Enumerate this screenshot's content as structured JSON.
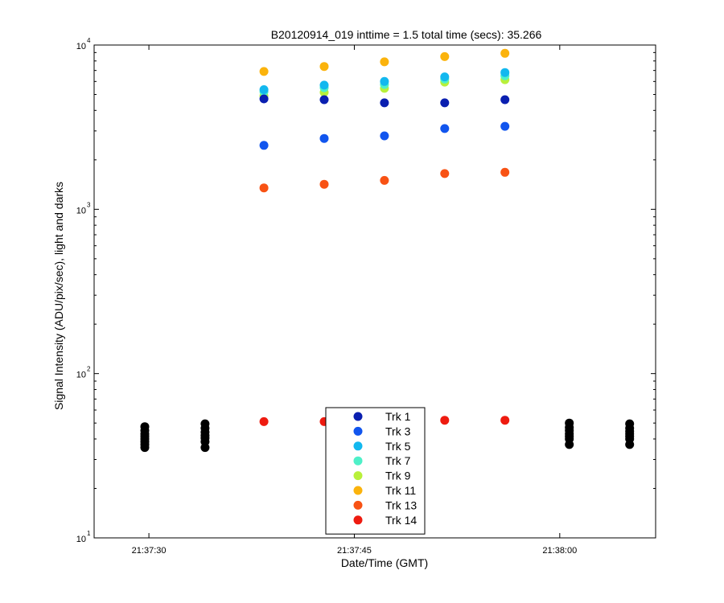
{
  "chart_data": {
    "type": "scatter",
    "title": "B20120914_019 inttime = 1.5 total time (secs): 35.266",
    "xlabel": "Date/Time (GMT)",
    "ylabel": "Signal Intensity (ADU/pix/sec), light and darks",
    "xscale": "time",
    "yscale": "log",
    "grid": false,
    "legend_position": "bottom-center",
    "xlim": [
      "21:37:26",
      "21:38:07"
    ],
    "ylim": [
      10,
      10000
    ],
    "xticks": [
      "21:37:30",
      "21:37:45",
      "21:38:00"
    ],
    "yticks": [
      {
        "base": "10",
        "exp": "1"
      },
      {
        "base": "10",
        "exp": "2"
      },
      {
        "base": "10",
        "exp": "3"
      },
      {
        "base": "10",
        "exp": "4"
      }
    ],
    "series": [
      {
        "name": "Trk 1",
        "color": "#0a1fb0",
        "points": [
          [
            "21:37:38.4",
            4700
          ],
          [
            "21:37:42.8",
            4650
          ],
          [
            "21:37:47.2",
            4450
          ],
          [
            "21:37:51.6",
            4450
          ],
          [
            "21:37:56.0",
            4650
          ]
        ]
      },
      {
        "name": "Trk 3",
        "color": "#1155ee",
        "points": [
          [
            "21:37:38.4",
            2450
          ],
          [
            "21:37:42.8",
            2700
          ],
          [
            "21:37:47.2",
            2800
          ],
          [
            "21:37:51.6",
            3100
          ],
          [
            "21:37:56.0",
            3200
          ]
        ]
      },
      {
        "name": "Trk 5",
        "color": "#12b8ef",
        "points": [
          [
            "21:37:38.4",
            5350
          ],
          [
            "21:37:42.8",
            5700
          ],
          [
            "21:37:47.2",
            6000
          ],
          [
            "21:37:51.6",
            6400
          ],
          [
            "21:37:56.0",
            6800
          ]
        ]
      },
      {
        "name": "Trk 7",
        "color": "#4ef0c8",
        "points": [
          [
            "21:37:38.4",
            5200
          ],
          [
            "21:37:42.8",
            5500
          ],
          [
            "21:37:47.2",
            5750
          ],
          [
            "21:37:51.6",
            6200
          ],
          [
            "21:37:56.0",
            6500
          ]
        ]
      },
      {
        "name": "Trk 9",
        "color": "#b8f03a",
        "points": [
          [
            "21:37:38.4",
            4900
          ],
          [
            "21:37:42.8",
            5150
          ],
          [
            "21:37:47.2",
            5450
          ],
          [
            "21:37:51.6",
            5950
          ],
          [
            "21:37:56.0",
            6150
          ]
        ]
      },
      {
        "name": "Trk 11",
        "color": "#fbb30c",
        "points": [
          [
            "21:37:38.4",
            6900
          ],
          [
            "21:37:42.8",
            7400
          ],
          [
            "21:37:47.2",
            7900
          ],
          [
            "21:37:51.6",
            8500
          ],
          [
            "21:37:56.0",
            8900
          ]
        ]
      },
      {
        "name": "Trk 13",
        "color": "#f85214",
        "points": [
          [
            "21:37:38.4",
            1350
          ],
          [
            "21:37:42.8",
            1420
          ],
          [
            "21:37:47.2",
            1500
          ],
          [
            "21:37:51.6",
            1650
          ],
          [
            "21:37:56.0",
            1680
          ]
        ]
      },
      {
        "name": "Trk 14",
        "color": "#ee1b10",
        "points": [
          [
            "21:37:38.4",
            51
          ],
          [
            "21:37:42.8",
            51
          ],
          [
            "21:37:47.2",
            51
          ],
          [
            "21:37:51.6",
            52
          ],
          [
            "21:37:56.0",
            52
          ]
        ]
      },
      {
        "color": "#000000",
        "role": "darks",
        "points": [
          [
            "21:37:29.7",
            47.5
          ],
          [
            "21:37:29.7",
            45
          ],
          [
            "21:37:29.7",
            43
          ],
          [
            "21:37:29.7",
            41.5
          ],
          [
            "21:37:29.7",
            40
          ],
          [
            "21:37:29.7",
            38.5
          ],
          [
            "21:37:29.7",
            37
          ],
          [
            "21:37:29.7",
            35.5
          ],
          [
            "21:37:34.1",
            49.5
          ],
          [
            "21:37:34.1",
            46.5
          ],
          [
            "21:37:34.1",
            44
          ],
          [
            "21:37:34.1",
            42
          ],
          [
            "21:37:34.1",
            40.5
          ],
          [
            "21:37:34.1",
            38.5
          ],
          [
            "21:37:34.1",
            35.5
          ],
          [
            "21:38:00.7",
            50
          ],
          [
            "21:38:00.7",
            47
          ],
          [
            "21:38:00.7",
            45
          ],
          [
            "21:38:00.7",
            43
          ],
          [
            "21:38:00.7",
            41.5
          ],
          [
            "21:38:00.7",
            40
          ],
          [
            "21:38:00.7",
            37
          ],
          [
            "21:38:05.1",
            49.5
          ],
          [
            "21:38:05.1",
            46.5
          ],
          [
            "21:38:05.1",
            44.5
          ],
          [
            "21:38:05.1",
            43
          ],
          [
            "21:38:05.1",
            41.5
          ],
          [
            "21:38:05.1",
            40
          ],
          [
            "21:38:05.1",
            37
          ]
        ]
      }
    ]
  }
}
